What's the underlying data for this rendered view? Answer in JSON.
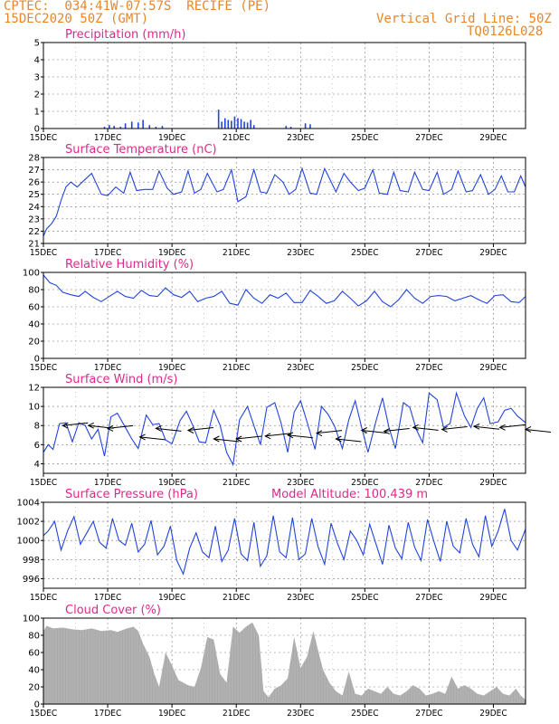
{
  "header": {
    "line1": "CPTEC:  034:41W-07:57S  RECIFE (PE)",
    "line2": "15DEC2020 50Z (GMT)",
    "grid_note": "Vertical Grid Line: 50Z",
    "code": "TQ0126L028"
  },
  "colors": {
    "header": "#e8862a",
    "title": "#e0288a",
    "line": "#2244dd",
    "cloud": "#aaaaaa",
    "arrow": "#000000"
  },
  "x_tick_labels": [
    "15DEC",
    "17DEC",
    "19DEC",
    "21DEC",
    "23DEC",
    "25DEC",
    "27DEC",
    "29DEC"
  ],
  "x_tick_days": [
    15,
    17,
    19,
    21,
    23,
    25,
    27,
    29
  ],
  "x_range": [
    15,
    30
  ],
  "chart_data": [
    {
      "id": "precip",
      "type": "bar",
      "title": "Precipitation (mm/h)",
      "ylim": [
        0,
        5
      ],
      "yticks": [
        0,
        1,
        2,
        3,
        4,
        5
      ],
      "grid": true,
      "x": [
        16.9,
        17.05,
        17.2,
        17.4,
        17.55,
        17.75,
        17.95,
        18.1,
        18.3,
        18.5,
        18.7,
        20.45,
        20.55,
        20.65,
        20.75,
        20.85,
        20.95,
        21.05,
        21.15,
        21.25,
        21.35,
        21.45,
        21.55,
        22.55,
        22.7,
        23.15,
        23.3
      ],
      "values": [
        0.1,
        0.2,
        0.15,
        0.1,
        0.3,
        0.4,
        0.35,
        0.5,
        0.2,
        0.1,
        0.15,
        1.1,
        0.4,
        0.6,
        0.5,
        0.45,
        0.7,
        0.6,
        0.55,
        0.4,
        0.35,
        0.5,
        0.2,
        0.15,
        0.1,
        0.3,
        0.25
      ]
    },
    {
      "id": "temp",
      "type": "line",
      "title": "Surface Temperature (nC)",
      "ylim": [
        21,
        28
      ],
      "yticks": [
        21,
        22,
        23,
        24,
        25,
        26,
        27,
        28
      ],
      "grid": true,
      "x": [
        15.0,
        15.1,
        15.25,
        15.4,
        15.55,
        15.7,
        15.85,
        16.05,
        16.25,
        16.5,
        16.8,
        17.0,
        17.25,
        17.5,
        17.7,
        17.9,
        18.15,
        18.4,
        18.6,
        18.85,
        19.05,
        19.3,
        19.5,
        19.7,
        19.9,
        20.1,
        20.4,
        20.6,
        20.85,
        21.05,
        21.3,
        21.55,
        21.75,
        21.95,
        22.2,
        22.45,
        22.65,
        22.85,
        23.05,
        23.3,
        23.5,
        23.75,
        23.9,
        24.1,
        24.35,
        24.55,
        24.8,
        25.0,
        25.25,
        25.45,
        25.7,
        25.9,
        26.1,
        26.35,
        26.55,
        26.8,
        27.0,
        27.25,
        27.45,
        27.7,
        27.9,
        28.15,
        28.35,
        28.6,
        28.85,
        29.05,
        29.25,
        29.45,
        29.65,
        29.85,
        30.0
      ],
      "values": [
        21.6,
        22.2,
        22.6,
        23.2,
        24.5,
        25.6,
        26.0,
        25.6,
        26.1,
        26.7,
        25.0,
        24.9,
        25.6,
        25.1,
        26.8,
        25.3,
        25.4,
        25.4,
        26.9,
        25.5,
        25.0,
        25.2,
        26.9,
        25.1,
        25.4,
        26.7,
        25.2,
        25.4,
        27.0,
        24.4,
        24.8,
        27.0,
        25.2,
        25.1,
        26.6,
        26.0,
        25.0,
        25.4,
        27.1,
        25.1,
        25.0,
        27.1,
        26.3,
        25.2,
        26.7,
        26.0,
        25.3,
        25.5,
        27.0,
        25.1,
        25.0,
        26.8,
        25.3,
        25.2,
        26.8,
        25.4,
        25.3,
        26.8,
        25.0,
        25.4,
        26.9,
        25.2,
        25.3,
        26.6,
        25.0,
        25.4,
        26.5,
        25.2,
        25.2,
        26.5,
        25.6
      ]
    },
    {
      "id": "rh",
      "type": "line",
      "title": "Relative Humidity (%)",
      "ylim": [
        0,
        100
      ],
      "yticks": [
        0,
        20,
        40,
        60,
        80,
        100
      ],
      "grid": true,
      "x": [
        15.0,
        15.2,
        15.4,
        15.6,
        15.85,
        16.1,
        16.3,
        16.55,
        16.8,
        17.05,
        17.3,
        17.55,
        17.8,
        18.05,
        18.3,
        18.55,
        18.8,
        19.05,
        19.3,
        19.55,
        19.8,
        20.05,
        20.3,
        20.55,
        20.8,
        21.05,
        21.3,
        21.55,
        21.8,
        22.05,
        22.3,
        22.55,
        22.8,
        23.05,
        23.3,
        23.55,
        23.8,
        24.05,
        24.3,
        24.55,
        24.8,
        25.05,
        25.3,
        25.55,
        25.8,
        26.05,
        26.3,
        26.55,
        26.8,
        27.05,
        27.3,
        27.55,
        27.8,
        28.05,
        28.3,
        28.55,
        28.8,
        29.05,
        29.3,
        29.55,
        29.8,
        30.0
      ],
      "values": [
        97,
        88,
        85,
        77,
        74,
        72,
        78,
        71,
        66,
        72,
        78,
        72,
        70,
        79,
        73,
        72,
        82,
        74,
        71,
        78,
        66,
        70,
        72,
        78,
        64,
        62,
        80,
        70,
        64,
        74,
        70,
        76,
        65,
        65,
        79,
        72,
        64,
        67,
        78,
        70,
        61,
        67,
        78,
        66,
        60,
        68,
        80,
        70,
        64,
        72,
        73,
        72,
        67,
        70,
        73,
        68,
        64,
        73,
        74,
        66,
        65,
        72
      ]
    },
    {
      "id": "wind",
      "type": "line",
      "title": "Surface Wind (m/s)",
      "ylim": [
        3,
        12
      ],
      "yticks": [
        4,
        6,
        8,
        10,
        12
      ],
      "grid": true,
      "x": [
        15.0,
        15.15,
        15.3,
        15.5,
        15.7,
        15.9,
        16.1,
        16.3,
        16.5,
        16.7,
        16.9,
        17.1,
        17.3,
        17.55,
        17.75,
        17.95,
        18.2,
        18.4,
        18.6,
        18.8,
        19.0,
        19.25,
        19.45,
        19.65,
        19.85,
        20.05,
        20.3,
        20.5,
        20.7,
        20.9,
        21.1,
        21.35,
        21.55,
        21.75,
        21.95,
        22.2,
        22.4,
        22.6,
        22.8,
        23.0,
        23.2,
        23.45,
        23.65,
        23.85,
        24.05,
        24.3,
        24.5,
        24.7,
        24.9,
        25.1,
        25.35,
        25.55,
        25.75,
        25.95,
        26.2,
        26.4,
        26.6,
        26.8,
        27.0,
        27.25,
        27.45,
        27.65,
        27.85,
        28.1,
        28.3,
        28.5,
        28.7,
        28.9,
        29.15,
        29.35,
        29.55,
        29.75,
        30.0
      ],
      "values": [
        5.2,
        6.0,
        5.5,
        8.2,
        8.3,
        6.3,
        8.3,
        8.0,
        6.6,
        7.6,
        4.8,
        8.9,
        9.3,
        7.8,
        6.6,
        5.6,
        9.1,
        8.1,
        8.2,
        6.5,
        6.1,
        8.5,
        9.5,
        8.0,
        6.3,
        6.2,
        9.6,
        8.0,
        5.2,
        3.9,
        8.6,
        10.0,
        8.0,
        6.0,
        9.9,
        10.4,
        8.2,
        5.2,
        9.4,
        10.6,
        8.4,
        5.5,
        10.0,
        9.2,
        8.0,
        5.6,
        8.6,
        10.6,
        7.8,
        5.2,
        8.5,
        10.9,
        7.8,
        5.6,
        10.4,
        9.9,
        7.6,
        6.2,
        11.4,
        10.7,
        7.8,
        8.2,
        11.4,
        9.0,
        7.8,
        9.8,
        10.9,
        8.2,
        8.4,
        9.6,
        9.8,
        9.0,
        8.3
      ],
      "barbs": [
        {
          "day": 15.6,
          "speed": 8.0,
          "dir": "W"
        },
        {
          "day": 16.4,
          "speed": 8.0,
          "dir": "W"
        },
        {
          "day": 17.0,
          "speed": 7.7,
          "dir": "W"
        },
        {
          "day": 18.0,
          "speed": 6.8,
          "dir": "W"
        },
        {
          "day": 18.5,
          "speed": 7.7,
          "dir": "W"
        },
        {
          "day": 19.5,
          "speed": 7.5,
          "dir": "W"
        },
        {
          "day": 20.3,
          "speed": 6.6,
          "dir": "W"
        },
        {
          "day": 21.0,
          "speed": 6.6,
          "dir": "W"
        },
        {
          "day": 21.9,
          "speed": 6.9,
          "dir": "W"
        },
        {
          "day": 22.6,
          "speed": 7.0,
          "dir": "W"
        },
        {
          "day": 23.5,
          "speed": 7.2,
          "dir": "W"
        },
        {
          "day": 24.1,
          "speed": 6.6,
          "dir": "W"
        },
        {
          "day": 24.9,
          "speed": 7.5,
          "dir": "W"
        },
        {
          "day": 25.6,
          "speed": 7.4,
          "dir": "W"
        },
        {
          "day": 26.5,
          "speed": 7.8,
          "dir": "W"
        },
        {
          "day": 27.4,
          "speed": 7.6,
          "dir": "W"
        },
        {
          "day": 28.4,
          "speed": 7.9,
          "dir": "W"
        },
        {
          "day": 29.2,
          "speed": 7.8,
          "dir": "W"
        },
        {
          "day": 30.0,
          "speed": 7.6,
          "dir": "W"
        }
      ]
    },
    {
      "id": "pressure",
      "type": "line",
      "title": "Surface Pressure (hPa)",
      "annotation": "Model Altitude: 100.439 m",
      "ylim": [
        995,
        1004
      ],
      "yticks": [
        996,
        998,
        1000,
        1002,
        1004
      ],
      "grid": true,
      "x": [
        15.0,
        15.15,
        15.35,
        15.55,
        15.75,
        15.95,
        16.15,
        16.35,
        16.55,
        16.75,
        16.95,
        17.15,
        17.35,
        17.55,
        17.75,
        17.95,
        18.15,
        18.35,
        18.55,
        18.75,
        18.95,
        19.15,
        19.35,
        19.55,
        19.75,
        19.95,
        20.15,
        20.35,
        20.55,
        20.75,
        20.95,
        21.15,
        21.35,
        21.55,
        21.75,
        21.95,
        22.15,
        22.35,
        22.55,
        22.75,
        22.95,
        23.15,
        23.35,
        23.55,
        23.75,
        23.95,
        24.15,
        24.35,
        24.55,
        24.75,
        24.95,
        25.15,
        25.35,
        25.55,
        25.75,
        25.95,
        26.15,
        26.35,
        26.55,
        26.75,
        26.95,
        27.15,
        27.35,
        27.55,
        27.75,
        27.95,
        28.15,
        28.35,
        28.55,
        28.75,
        28.95,
        29.15,
        29.35,
        29.55,
        29.75,
        30.0
      ],
      "values": [
        1000.5,
        1001.0,
        1002.0,
        999.0,
        1001.0,
        1002.5,
        999.6,
        1000.8,
        1002.0,
        999.8,
        999.2,
        1002.3,
        1000.0,
        999.5,
        1001.8,
        998.8,
        999.6,
        1002.1,
        998.5,
        999.4,
        1001.5,
        997.9,
        996.5,
        999.2,
        1000.8,
        998.8,
        998.2,
        1001.5,
        997.8,
        999.0,
        1002.3,
        998.6,
        997.9,
        1001.9,
        997.3,
        998.4,
        1002.6,
        998.8,
        998.2,
        1002.4,
        998.0,
        998.6,
        1002.3,
        999.3,
        997.5,
        1001.8,
        999.7,
        998.0,
        1001.0,
        1000.0,
        998.5,
        1001.7,
        999.6,
        997.5,
        1001.6,
        999.2,
        998.1,
        1001.9,
        999.3,
        997.9,
        1002.2,
        999.9,
        997.8,
        1002.0,
        999.4,
        998.7,
        1002.3,
        999.6,
        998.3,
        1002.6,
        999.4,
        1001.0,
        1003.3,
        1000.0,
        999.0,
        1001.2
      ]
    },
    {
      "id": "cloud",
      "type": "area",
      "title": "Cloud Cover (%)",
      "ylim": [
        0,
        100
      ],
      "yticks": [
        0,
        20,
        40,
        60,
        80,
        100
      ],
      "grid": true,
      "x": [
        15.0,
        15.1,
        15.3,
        15.6,
        15.9,
        16.2,
        16.5,
        16.8,
        17.1,
        17.3,
        17.6,
        17.8,
        17.95,
        18.1,
        18.3,
        18.45,
        18.6,
        18.8,
        19.0,
        19.2,
        19.5,
        19.7,
        19.9,
        20.1,
        20.3,
        20.5,
        20.7,
        20.9,
        21.1,
        21.3,
        21.5,
        21.7,
        21.85,
        22.0,
        22.2,
        22.4,
        22.6,
        22.8,
        23.0,
        23.2,
        23.4,
        23.55,
        23.7,
        23.9,
        24.1,
        24.3,
        24.5,
        24.7,
        24.9,
        25.1,
        25.3,
        25.5,
        25.7,
        25.9,
        26.1,
        26.3,
        26.5,
        26.7,
        26.9,
        27.1,
        27.3,
        27.5,
        27.7,
        27.9,
        28.1,
        28.3,
        28.5,
        28.7,
        28.9,
        29.1,
        29.3,
        29.5,
        29.7,
        29.85,
        30.0
      ],
      "values": [
        85,
        91,
        88,
        89,
        87,
        86,
        88,
        85,
        86,
        84,
        88,
        90,
        85,
        70,
        55,
        35,
        20,
        60,
        45,
        28,
        22,
        20,
        42,
        78,
        75,
        35,
        25,
        90,
        83,
        90,
        95,
        80,
        15,
        8,
        18,
        22,
        30,
        78,
        42,
        55,
        85,
        62,
        40,
        25,
        15,
        10,
        38,
        12,
        10,
        18,
        15,
        12,
        20,
        12,
        10,
        15,
        22,
        18,
        10,
        12,
        15,
        12,
        32,
        18,
        22,
        18,
        12,
        10,
        15,
        20,
        12,
        10,
        18,
        10,
        5
      ]
    }
  ]
}
